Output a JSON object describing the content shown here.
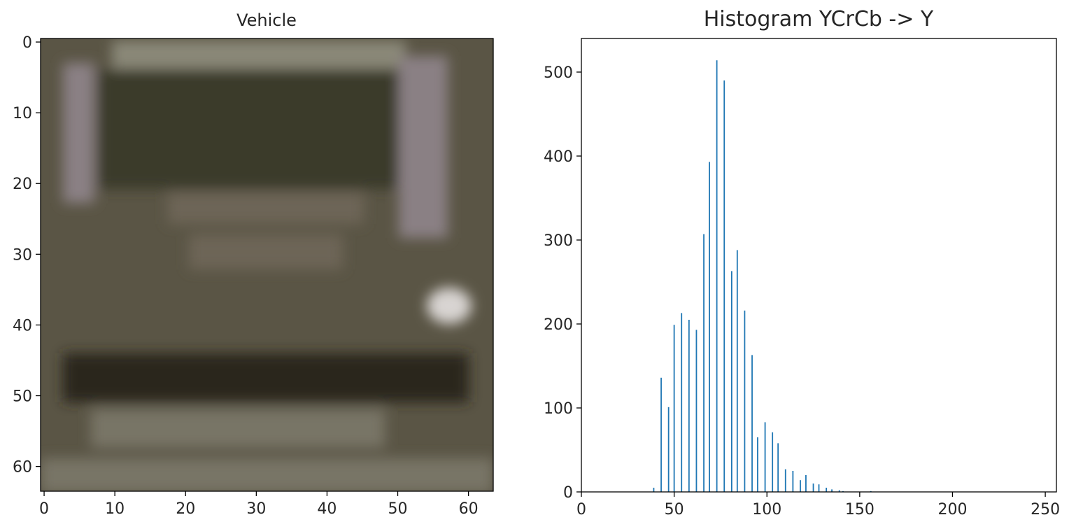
{
  "chart_data": [
    {
      "type": "image",
      "title": "Vehicle",
      "xlim": [
        -0.5,
        63.5
      ],
      "ylim": [
        63.5,
        -0.5
      ],
      "xticks": [
        0,
        10,
        20,
        30,
        40,
        50,
        60
      ],
      "yticks": [
        0,
        10,
        20,
        30,
        40,
        50,
        60
      ],
      "colors": {
        "base": "#5a5545",
        "roof_bar": "#8a8878",
        "windshield": "#3b3a2c",
        "pillar": "#8a8084",
        "grille": "#6d6556",
        "bumper": "#2c281f",
        "lower_strip": "#787466",
        "headlight": "#d8d4d2"
      }
    },
    {
      "type": "bar",
      "title": "Histogram YCrCb -> Y",
      "xlabel": "",
      "ylabel": "",
      "xlim": [
        0,
        256
      ],
      "ylim": [
        0,
        540
      ],
      "xticks": [
        0,
        50,
        100,
        150,
        200,
        250
      ],
      "yticks": [
        0,
        100,
        200,
        300,
        400,
        500
      ],
      "color": "#1f77b4",
      "series": [
        {
          "x": [
            39,
            43,
            47,
            50,
            54,
            58,
            62,
            66,
            69,
            73,
            77,
            81,
            84,
            88,
            92,
            95,
            99,
            103,
            106,
            110,
            114,
            118,
            121,
            125,
            128,
            132,
            135,
            139,
            141,
            156
          ],
          "values": [
            5,
            136,
            101,
            199,
            213,
            205,
            193,
            307,
            393,
            514,
            490,
            263,
            288,
            216,
            163,
            65,
            83,
            71,
            58,
            27,
            25,
            14,
            20,
            10,
            9,
            5,
            3,
            2,
            1,
            1
          ]
        }
      ]
    }
  ]
}
